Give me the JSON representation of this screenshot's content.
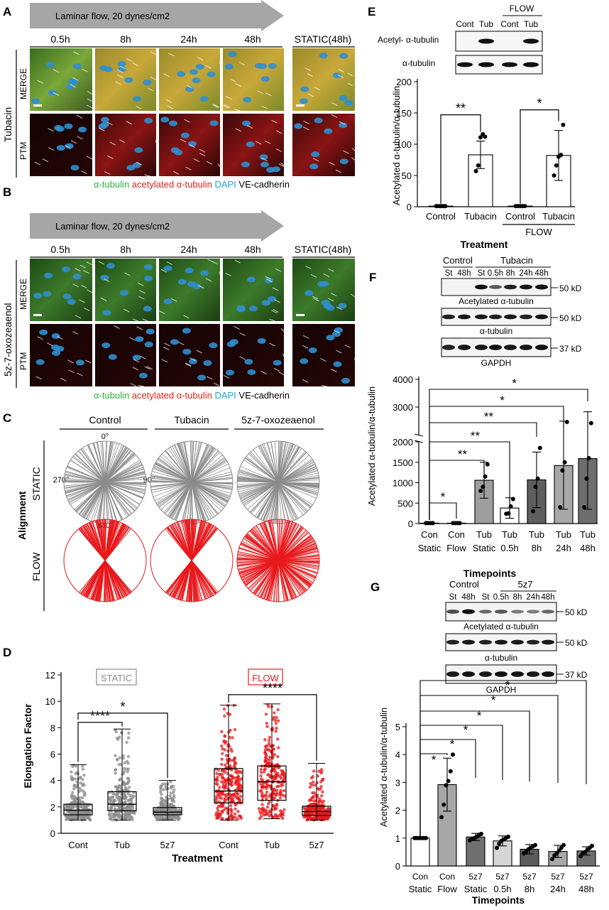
{
  "panels": {
    "A": "A",
    "B": "B",
    "C": "C",
    "D": "D",
    "E": "E",
    "F": "F",
    "G": "G"
  },
  "panelA": {
    "arrow": "Laminar flow, 20 dynes/cm2",
    "timepoints": [
      "0.5h",
      "8h",
      "24h",
      "48h"
    ],
    "static_label": "STATIC(48h)",
    "treatment": "Tubacin",
    "rows": [
      "MERGE",
      "PTM"
    ],
    "legend": [
      {
        "text": "α-tubulin",
        "color": "#2bb33e"
      },
      {
        "text": "acetylated α-tubulin",
        "color": "#e2231a"
      },
      {
        "text": "DAPI",
        "color": "#1aa6e0"
      },
      {
        "text": "VE-cadherin",
        "color": "#000000"
      }
    ]
  },
  "panelB": {
    "arrow": "Laminar flow, 20 dynes/cm2",
    "timepoints": [
      "0.5h",
      "8h",
      "24h",
      "48h"
    ],
    "static_label": "STATIC(48h)",
    "treatment": "5z-7-oxozeaenol",
    "rows": [
      "MERGE",
      "PTM"
    ],
    "legend": [
      {
        "text": "α-tubulin",
        "color": "#2bb33e"
      },
      {
        "text": "acetylated α-tubulin",
        "color": "#e2231a"
      },
      {
        "text": "DAPI",
        "color": "#1aa6e0"
      },
      {
        "text": "VE-cadherin",
        "color": "#000000"
      }
    ]
  },
  "panelC": {
    "columns": [
      "Control",
      "Tubacin",
      "5z-7-oxozeaenol"
    ],
    "rows": [
      "STATIC",
      "FLOW"
    ],
    "side": "Alignment",
    "angles": [
      "0°",
      "90°",
      "180°",
      "270°"
    ],
    "colors": {
      "static": "#8c8c8c",
      "flow": "#e8191c"
    }
  },
  "chart_data": [
    {
      "id": "D",
      "type": "box",
      "ylabel": "Elongation Factor",
      "xlabel": "Treatment",
      "ylim": [
        0,
        12
      ],
      "yticks": [
        0,
        2,
        4,
        6,
        8,
        10,
        12
      ],
      "groups": [
        {
          "name": "STATIC",
          "color": "#8c8c8c",
          "categories": [
            "Cont",
            "Tub",
            "5z7"
          ],
          "box": [
            {
              "min": 1.0,
              "q1": 1.4,
              "median": 1.75,
              "q3": 2.2,
              "max": 5.2
            },
            {
              "min": 1.0,
              "q1": 1.7,
              "median": 2.2,
              "q3": 3.15,
              "max": 7.9
            },
            {
              "min": 1.0,
              "q1": 1.4,
              "median": 1.6,
              "q3": 1.95,
              "max": 4.0
            }
          ]
        },
        {
          "name": "FLOW",
          "color": "#e8191c",
          "categories": [
            "Cont",
            "Tub",
            "5z7"
          ],
          "box": [
            {
              "min": 1.0,
              "q1": 2.3,
              "median": 3.2,
              "q3": 4.9,
              "max": 9.7
            },
            {
              "min": 1.1,
              "q1": 2.5,
              "median": 3.9,
              "q3": 5.1,
              "max": 9.8
            },
            {
              "min": 1.0,
              "q1": 1.35,
              "median": 1.65,
              "q3": 2.05,
              "max": 5.3
            }
          ]
        }
      ],
      "significance": [
        "****",
        "*",
        "****"
      ]
    },
    {
      "id": "E",
      "type": "bar",
      "blot": {
        "header": "FLOW",
        "lanes": [
          "Cont",
          "Tub",
          "Cont",
          "Tub"
        ],
        "rows": [
          "Acetyl- α-tubulin",
          "α-tubulin"
        ]
      },
      "ylabel": "Acetylated α-tubulin/α-tubulin",
      "xlabel": "Treatment",
      "ylim": [
        0,
        200
      ],
      "yticks": [
        0,
        50,
        100,
        150,
        200
      ],
      "categories": [
        "Control",
        "Tubacin",
        "Control",
        "Tubacin"
      ],
      "group_label": "FLOW",
      "values": [
        1,
        83,
        1,
        82
      ],
      "errors": [
        1,
        22,
        1,
        40
      ],
      "points": [
        [
          1,
          1,
          1,
          1,
          1
        ],
        [
          57,
          66,
          111,
          116,
          112
        ],
        [
          1,
          1,
          1,
          1,
          1
        ],
        [
          50,
          66,
          80,
          83,
          131
        ]
      ],
      "significance": [
        "**",
        "*"
      ]
    },
    {
      "id": "F",
      "type": "bar",
      "blot": {
        "group_labels": [
          "Control",
          "Tubacin"
        ],
        "lanes": [
          "St",
          "48h",
          "St",
          "0.5h",
          "8h",
          "24h",
          "48h"
        ],
        "rows": [
          "Acetylated α-tubulin",
          "α-tubulin",
          "GAPDH"
        ],
        "mw": [
          "50 kD",
          "50 kD",
          "37 kD"
        ]
      },
      "ylabel": "Acetylated α-tubulin/α-tubulin",
      "xlabel": "Timepoints",
      "ylim": [
        0,
        4000
      ],
      "yticks": [
        0,
        500,
        1000,
        1500,
        2000,
        3000,
        4000
      ],
      "categories": [
        [
          "Con",
          "Static"
        ],
        [
          "Con",
          "Flow"
        ],
        [
          "Tub",
          "Static"
        ],
        [
          "Tub",
          "0.5h"
        ],
        [
          "Tub",
          "8h"
        ],
        [
          "Tub",
          "24h"
        ],
        [
          "Tub",
          "48h"
        ]
      ],
      "values": [
        10,
        10,
        1060,
        380,
        1070,
        1420,
        1590
      ],
      "errors": [
        10,
        10,
        440,
        250,
        680,
        1070,
        1240
      ],
      "points": [
        [
          10,
          10,
          10,
          10
        ],
        [
          10,
          10,
          10,
          10
        ],
        [
          800,
          900,
          1150,
          1450
        ],
        [
          240,
          250,
          420,
          600
        ],
        [
          300,
          900,
          1100,
          1850
        ],
        [
          400,
          1300,
          1500,
          2460
        ],
        [
          400,
          1100,
          1600,
          2420
        ]
      ],
      "significance": [
        "*",
        "**",
        "**",
        "**",
        "*",
        "*"
      ]
    },
    {
      "id": "G",
      "type": "bar",
      "blot": {
        "group_labels": [
          "Control",
          "5z7"
        ],
        "lanes": [
          "St",
          "48h",
          "St",
          "0.5h",
          "8h",
          "24h",
          "48h"
        ],
        "rows": [
          "Acetylated α-tubulin",
          "α-tubulin",
          "GAPDH"
        ],
        "mw": [
          "50 kD",
          "50 kD",
          "37 kD"
        ]
      },
      "ylabel": "Acetylated α-tubulin/α-tubulin",
      "xlabel": "Timepoints",
      "ylim": [
        0,
        5
      ],
      "yticks": [
        0,
        1,
        2,
        3,
        4,
        5
      ],
      "categories": [
        [
          "Con",
          "Static"
        ],
        [
          "Con",
          "Flow"
        ],
        [
          "5z7",
          "Static"
        ],
        [
          "5z7",
          "0.5h"
        ],
        [
          "5z7",
          "8h"
        ],
        [
          "5z7",
          "24h"
        ],
        [
          "5z7",
          "48h"
        ]
      ],
      "values": [
        1.0,
        2.92,
        1.04,
        0.9,
        0.6,
        0.52,
        0.54
      ],
      "errors": [
        0,
        0.95,
        0.13,
        0.18,
        0.17,
        0.22,
        0.15
      ],
      "points": [
        [
          1,
          1,
          1,
          1,
          1,
          1
        ],
        [
          1.75,
          2.2,
          2.9,
          3.05,
          3.4,
          4.0
        ],
        [
          0.92,
          0.98,
          1.0,
          1.05,
          1.12,
          1.15
        ],
        [
          0.65,
          0.8,
          0.9,
          0.95,
          1.0,
          1.05
        ],
        [
          0.45,
          0.5,
          0.6,
          0.65,
          0.7,
          0.75
        ],
        [
          0.25,
          0.38,
          0.45,
          0.55,
          0.65,
          0.75
        ],
        [
          0.35,
          0.45,
          0.5,
          0.58,
          0.65,
          0.72
        ]
      ],
      "significance": [
        "*",
        "*",
        "*",
        "*",
        "*",
        "*"
      ]
    }
  ]
}
